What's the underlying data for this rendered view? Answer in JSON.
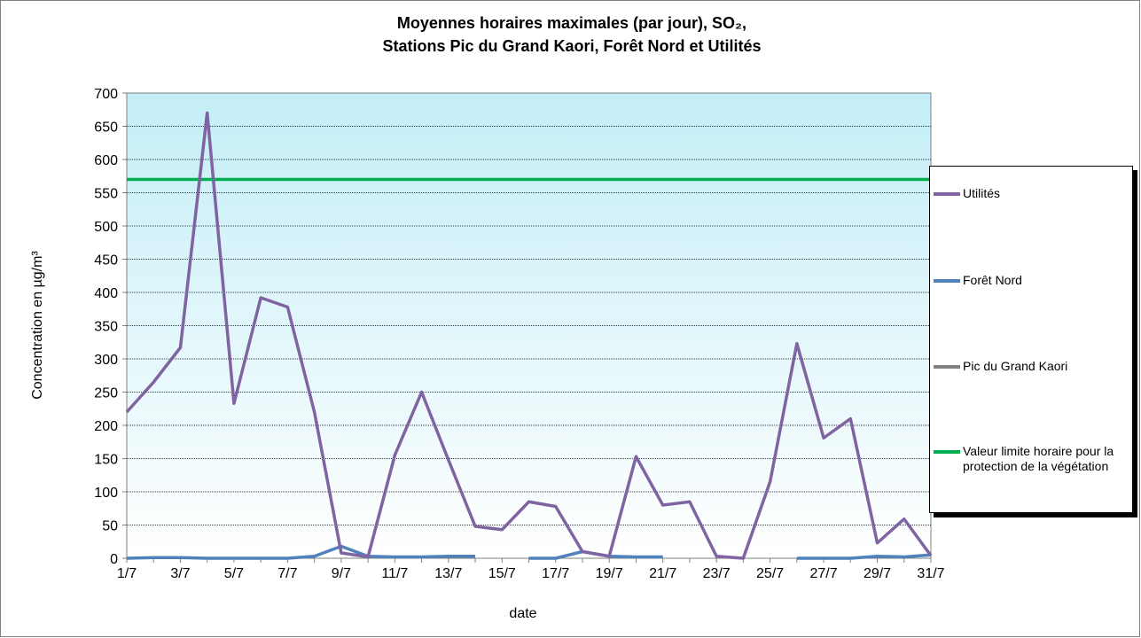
{
  "chart_data": {
    "type": "line",
    "title": "Moyennes horaires maximales (par jour), SO₂,",
    "subtitle": "Stations Pic du Grand Kaori, Forêt Nord et Utilités",
    "y_label": "Concentration en µg/m³",
    "x_label": "date",
    "categories": [
      "1/7",
      null,
      "3/7",
      null,
      "5/7",
      null,
      "7/7",
      null,
      "9/7",
      null,
      "11/7",
      null,
      "13/7",
      null,
      "15/7",
      null,
      "17/7",
      null,
      "19/7",
      null,
      "21/7",
      null,
      "23/7",
      null,
      "25/7",
      null,
      "27/7",
      null,
      "29/7",
      null,
      "31/7"
    ],
    "series": [
      {
        "name": "Utilités",
        "color": "#8064a2",
        "values": [
          220,
          265,
          317,
          670,
          233,
          392,
          378,
          220,
          8,
          2,
          155,
          250,
          148,
          48,
          43,
          85,
          78,
          10,
          3,
          153,
          80,
          85,
          3,
          0,
          115,
          323,
          181,
          210,
          23,
          59,
          4
        ]
      },
      {
        "name": "Forêt Nord",
        "color": "#4f81bd",
        "values": [
          0,
          1,
          1,
          0,
          0,
          0,
          0,
          3,
          18,
          3,
          2,
          2,
          3,
          3,
          null,
          0,
          0,
          10,
          3,
          2,
          2,
          null,
          null,
          null,
          null,
          0,
          0,
          0,
          3,
          2,
          5
        ]
      },
      {
        "name": "Pic du Grand Kaori",
        "color": "#808080",
        "values": [
          null,
          null,
          null,
          null,
          null,
          null,
          null,
          null,
          null,
          null,
          null,
          null,
          null,
          null,
          null,
          null,
          null,
          null,
          null,
          null,
          null,
          null,
          null,
          null,
          null,
          null,
          null,
          null,
          null,
          null,
          null
        ]
      },
      {
        "name": "Valeur limite horaire pour la protection de la végétation",
        "color": "#00b050",
        "values": [
          570,
          570,
          570,
          570,
          570,
          570,
          570,
          570,
          570,
          570,
          570,
          570,
          570,
          570,
          570,
          570,
          570,
          570,
          570,
          570,
          570,
          570,
          570,
          570,
          570,
          570,
          570,
          570,
          570,
          570,
          570
        ]
      }
    ],
    "ylim": [
      0,
      700
    ],
    "yticks": [
      0,
      50,
      100,
      150,
      200,
      250,
      300,
      350,
      400,
      450,
      500,
      550,
      600,
      650,
      700
    ],
    "grid": true
  }
}
